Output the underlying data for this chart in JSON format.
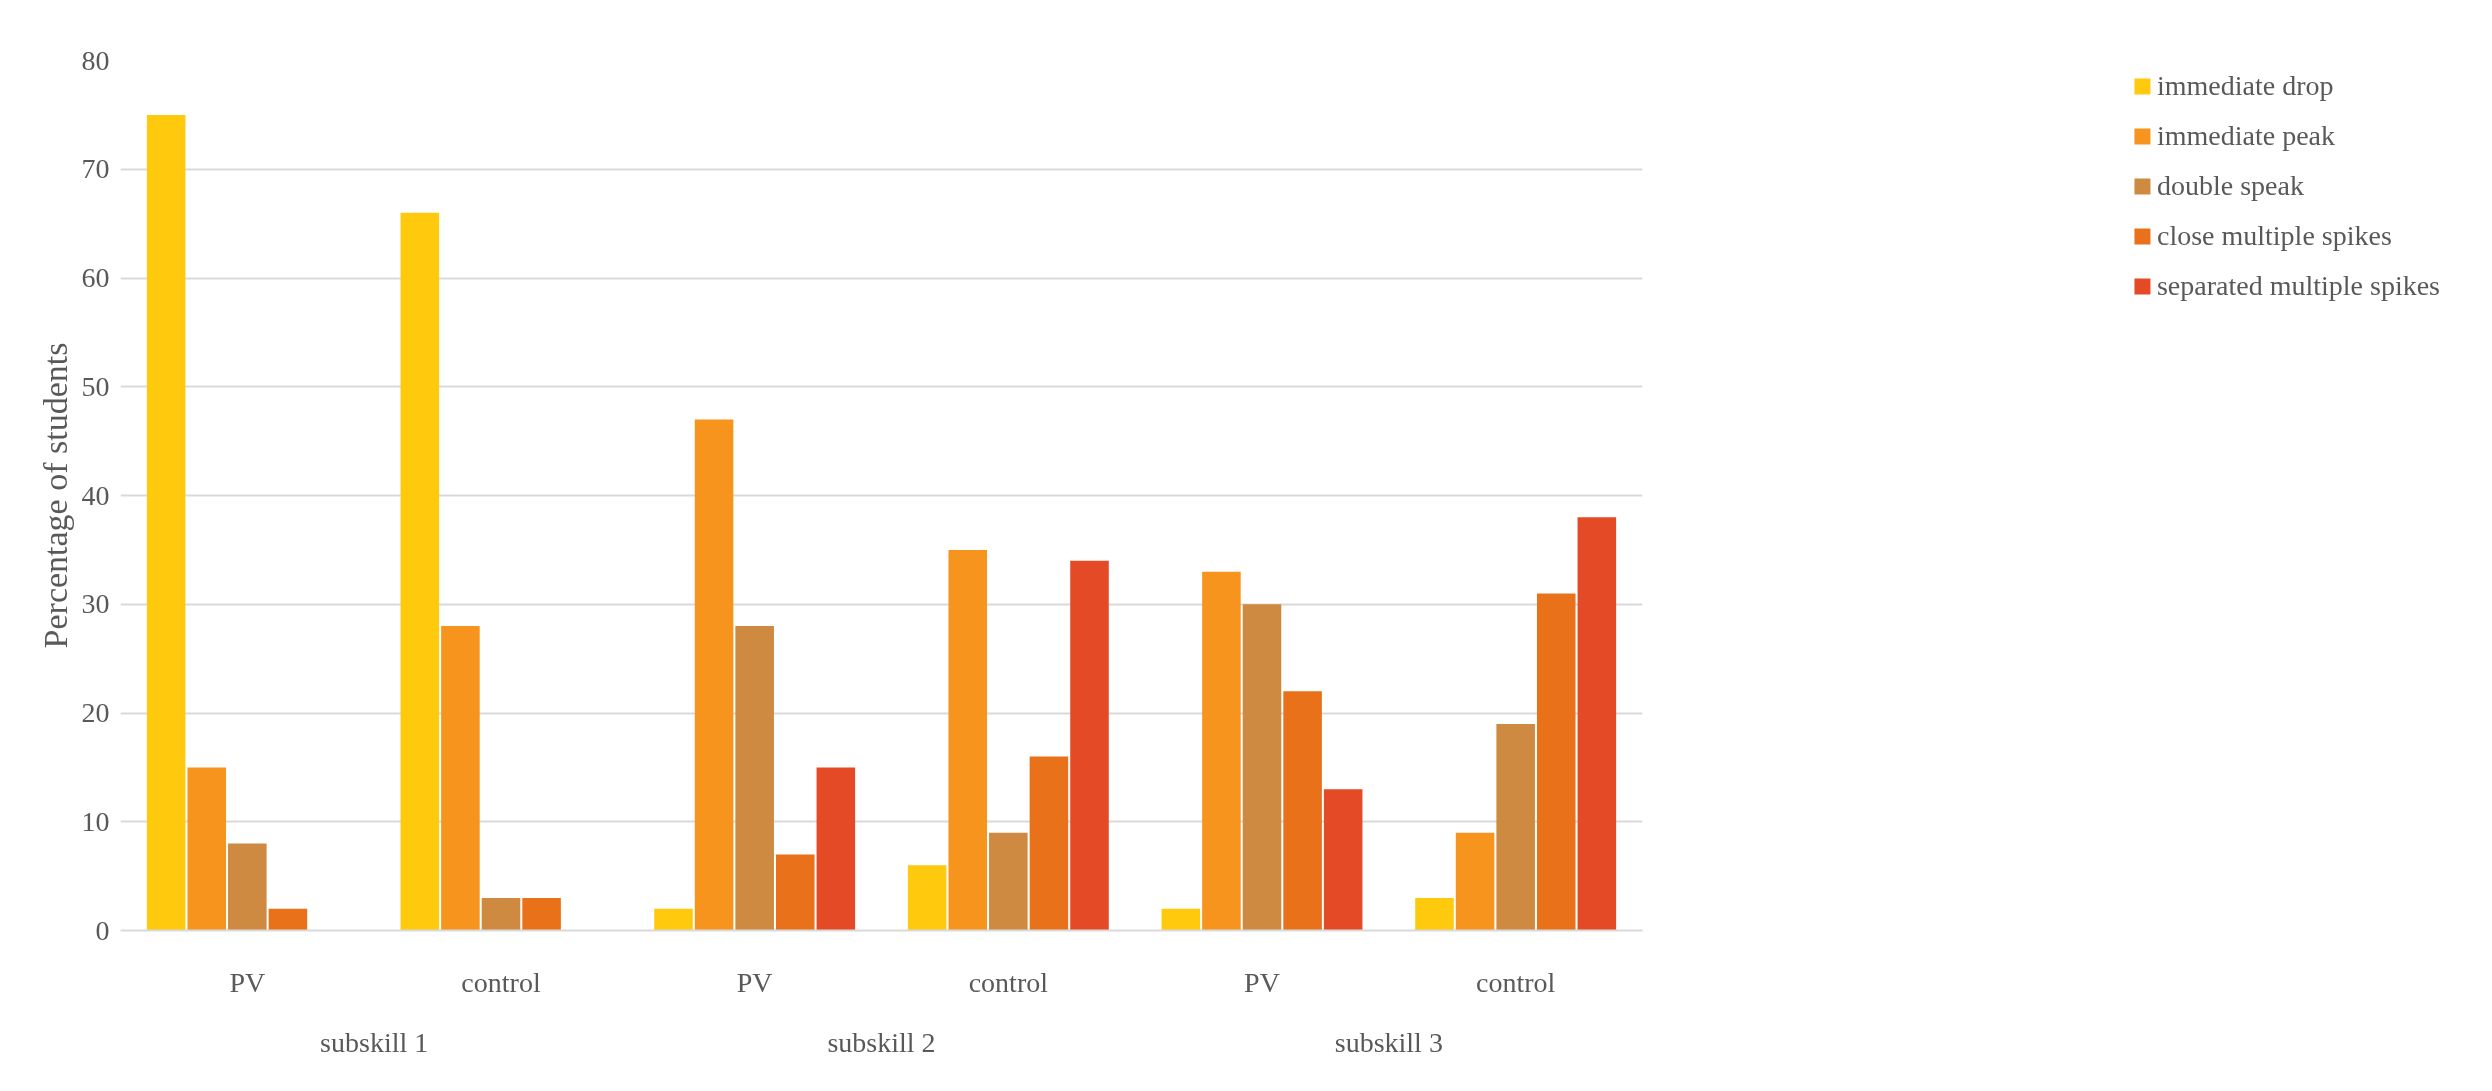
{
  "chart_data": {
    "type": "bar",
    "ylabel": "Percentage of students",
    "categories": [
      "PV",
      "control",
      "PV",
      "control",
      "PV",
      "control"
    ],
    "annotations": [
      "subskill 1",
      "subskill 2",
      "subskill 3"
    ],
    "series": [
      {
        "name": "immediate drop",
        "color": "#ffc90e",
        "values": [
          75,
          66,
          2,
          6,
          2,
          3
        ]
      },
      {
        "name": "immediate peak",
        "color": "#f7941d",
        "values": [
          15,
          28,
          47,
          35,
          33,
          9
        ]
      },
      {
        "name": "double speak",
        "color": "#cd8a40",
        "values": [
          8,
          3,
          28,
          9,
          30,
          19
        ]
      },
      {
        "name": "close multiple spikes",
        "color": "#e8711a",
        "values": [
          2,
          3,
          7,
          16,
          22,
          31
        ]
      },
      {
        "name": "separated multiple spikes",
        "color": "#e44a25",
        "values": [
          0,
          0,
          15,
          34,
          13,
          38
        ]
      }
    ],
    "ylim": [
      0,
      80
    ],
    "yticks": [
      0,
      10,
      20,
      30,
      40,
      50,
      60,
      70,
      80
    ],
    "grid": "y",
    "legend": "right"
  }
}
